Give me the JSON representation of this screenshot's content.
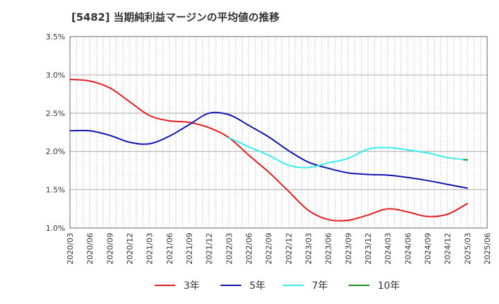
{
  "chart_data": {
    "type": "line",
    "title": "[5482]  当期純利益マージンの平均値の推移",
    "xlabel": "",
    "ylabel": "",
    "ylim": [
      1.0,
      3.5
    ],
    "yticks": [
      "1.0%",
      "1.5%",
      "2.0%",
      "2.5%",
      "3.0%",
      "3.5%"
    ],
    "ytick_values": [
      1.0,
      1.5,
      2.0,
      2.5,
      3.0,
      3.5
    ],
    "x": [
      "2020/03",
      "2020/06",
      "2020/09",
      "2020/12",
      "2021/03",
      "2021/06",
      "2021/09",
      "2021/12",
      "2022/03",
      "2022/06",
      "2022/09",
      "2022/12",
      "2023/03",
      "2023/06",
      "2023/09",
      "2023/12",
      "2024/03",
      "2024/06",
      "2024/09",
      "2024/12",
      "2025/03",
      "2025/06"
    ],
    "grid": true,
    "legend_position": "bottom",
    "series": [
      {
        "name": "3年",
        "color": "#e41a1c",
        "values": [
          2.94,
          2.92,
          2.83,
          2.65,
          2.47,
          2.4,
          2.38,
          2.31,
          2.18,
          1.95,
          1.73,
          1.48,
          1.23,
          1.11,
          1.1,
          1.17,
          1.25,
          1.21,
          1.15,
          1.18,
          1.32,
          null
        ]
      },
      {
        "name": "5年",
        "color": "#0d13b1",
        "values": [
          2.27,
          2.27,
          2.21,
          2.12,
          2.1,
          2.2,
          2.35,
          2.5,
          2.48,
          2.34,
          2.19,
          2.01,
          1.86,
          1.78,
          1.72,
          1.7,
          1.69,
          1.66,
          1.62,
          1.57,
          1.52,
          null
        ]
      },
      {
        "name": "7年",
        "color": "#33eeee",
        "values": [
          null,
          null,
          null,
          null,
          null,
          null,
          null,
          null,
          2.18,
          2.06,
          1.95,
          1.82,
          1.79,
          1.85,
          1.91,
          2.03,
          2.05,
          2.02,
          1.98,
          1.92,
          1.89,
          null
        ]
      },
      {
        "name": "10年",
        "color": "#1a8f1a",
        "values": [
          null,
          null,
          null,
          null,
          null,
          null,
          null,
          null,
          null,
          null,
          null,
          null,
          null,
          null,
          null,
          null,
          null,
          null,
          null,
          null,
          1.89,
          null
        ]
      }
    ]
  }
}
